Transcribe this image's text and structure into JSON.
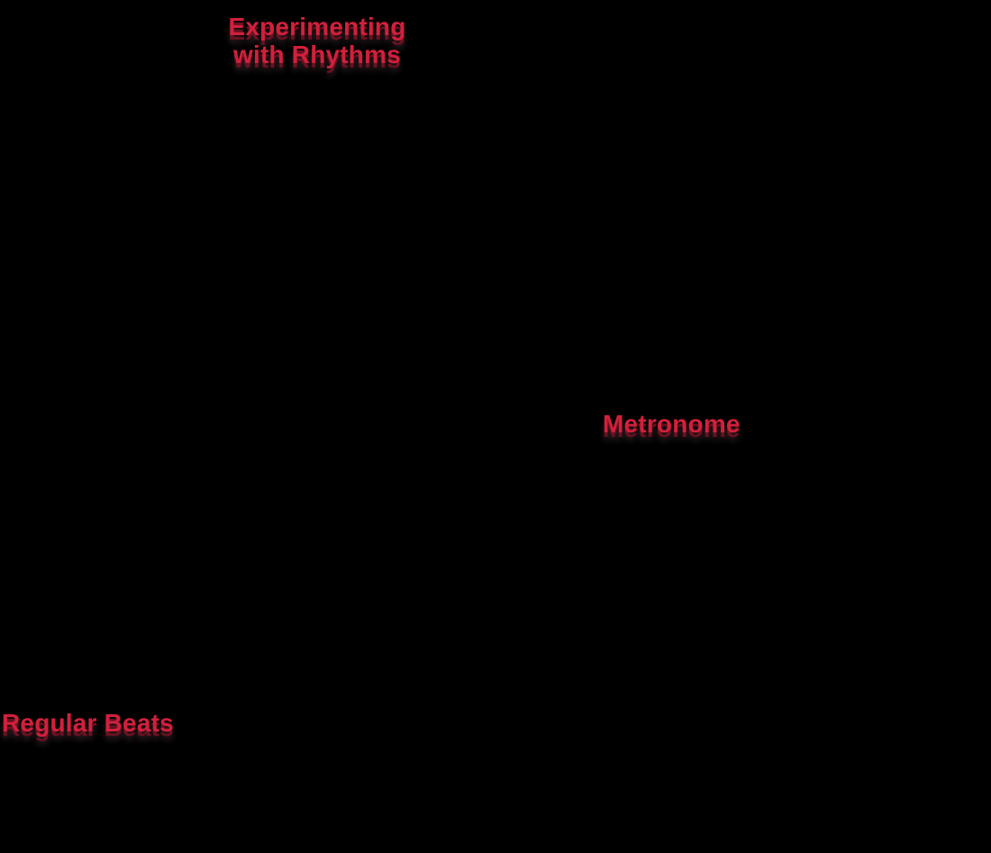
{
  "canvas": {
    "background": "#000000"
  },
  "colors": {
    "label_red": "#d2203c",
    "label_shadow": "#6e1222",
    "bg": "#000000"
  },
  "labels": {
    "title": {
      "line1": "Experimenting",
      "line2": "with Rhythms"
    },
    "metronome": "Metronome",
    "regular_beats": "Regular Beats"
  }
}
